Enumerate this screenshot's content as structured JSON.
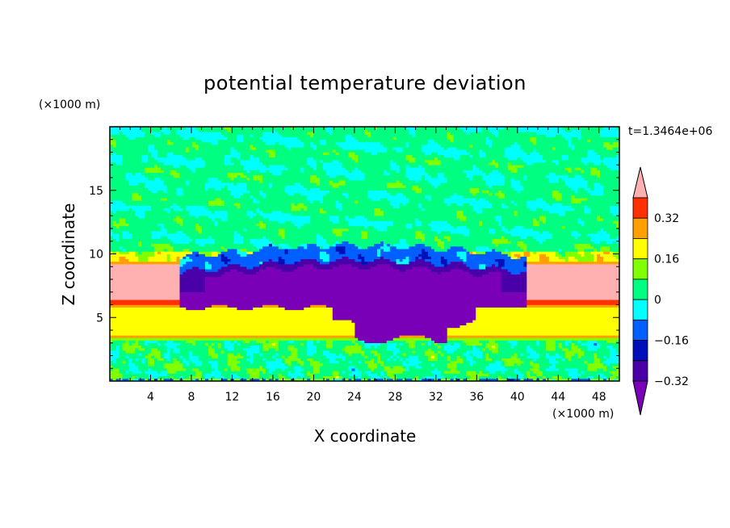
{
  "chart_data": {
    "type": "heatmap",
    "title": "potential temperature deviation",
    "xlabel": "X coordinate",
    "ylabel": "Z coordinate",
    "x_unit": "(×1000 m)",
    "y_unit": "(×1000 m)",
    "time_label": "t=1.3464e+06",
    "xlim": [
      0,
      50
    ],
    "ylim": [
      0,
      20
    ],
    "x_ticks": [
      "4",
      "8",
      "12",
      "16",
      "20",
      "24",
      "28",
      "32",
      "36",
      "40",
      "44",
      "48"
    ],
    "y_ticks": [
      "5",
      "10",
      "15"
    ],
    "colorbar": {
      "tick_labels": [
        "0.32",
        "0.16",
        "0",
        "-0.16",
        "-0.32"
      ],
      "levels": [
        -0.4,
        -0.32,
        -0.24,
        -0.16,
        -0.08,
        0,
        0.08,
        0.16,
        0.24,
        0.32,
        0.4
      ],
      "colors": [
        "#7a00b8",
        "#4a00a8",
        "#0010b8",
        "#0060ff",
        "#00ffff",
        "#00ff80",
        "#80ff00",
        "#ffff00",
        "#ffa000",
        "#ff3000",
        "#ffb0b0"
      ]
    },
    "fields": [
      {
        "feature": "near-surface noisy layer",
        "z_range": [
          0,
          3.3
        ],
        "dominant_value": 0.05
      },
      {
        "feature": "lower warm layer",
        "z_range": [
          3.7,
          5.8
        ],
        "dominant_value": 0.2
      },
      {
        "feature": "strong inversion band",
        "z_range": [
          6.0,
          6.4
        ],
        "dominant_value": 0.32
      },
      {
        "feature": "upper warm layer",
        "z_range": [
          6.4,
          9.5
        ],
        "dominant_value": 0.4
      },
      {
        "feature": "cold pool",
        "x_range": [
          7,
          40
        ],
        "z_range": [
          3.2,
          8.5
        ],
        "dominant_value": -0.36
      },
      {
        "feature": "stratified upper troposphere",
        "z_range": [
          10,
          20
        ],
        "dominant_value": 0.05
      }
    ]
  }
}
